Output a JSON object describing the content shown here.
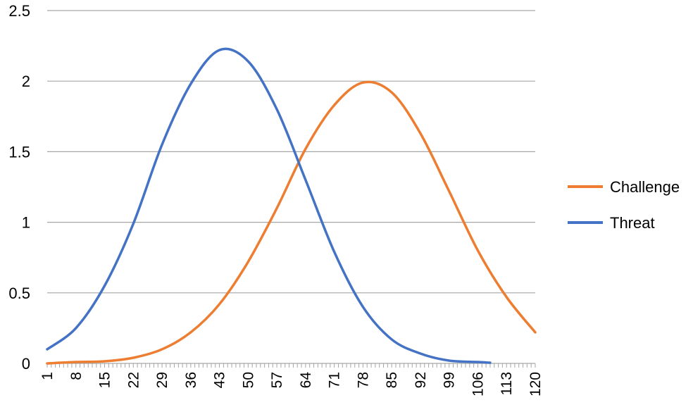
{
  "chart_data": {
    "type": "line",
    "title": "",
    "xlabel": "",
    "ylabel": "",
    "x_range": [
      1,
      120
    ],
    "xticks": [
      1,
      8,
      15,
      22,
      29,
      36,
      43,
      50,
      57,
      64,
      71,
      78,
      85,
      92,
      99,
      106,
      113,
      120
    ],
    "ylim": [
      0,
      2.5
    ],
    "yticks": [
      "0",
      "0.5",
      "1",
      "1.5",
      "2",
      "2.5"
    ],
    "yticks_values": [
      0,
      0.5,
      1,
      1.5,
      2,
      2.5
    ],
    "grid": "horizontal",
    "legend_position": "right",
    "series": [
      {
        "name": "Challenge",
        "color": "#ED7D31",
        "x": [
          1,
          8,
          15,
          22,
          29,
          36,
          43,
          50,
          57,
          64,
          71,
          78,
          85,
          92,
          99,
          106,
          113,
          120
        ],
        "values": [
          0.0,
          0.01,
          0.015,
          0.04,
          0.1,
          0.22,
          0.42,
          0.72,
          1.1,
          1.52,
          1.83,
          1.99,
          1.92,
          1.63,
          1.22,
          0.8,
          0.47,
          0.22
        ]
      },
      {
        "name": "Threat",
        "color": "#4472C4",
        "x": [
          1,
          8,
          15,
          22,
          29,
          36,
          43,
          50,
          57,
          64,
          71,
          78,
          85,
          92,
          99,
          106,
          109
        ],
        "values": [
          0.1,
          0.25,
          0.55,
          0.99,
          1.55,
          1.98,
          2.22,
          2.14,
          1.8,
          1.3,
          0.79,
          0.4,
          0.17,
          0.07,
          0.02,
          0.01,
          0.005
        ]
      }
    ]
  }
}
